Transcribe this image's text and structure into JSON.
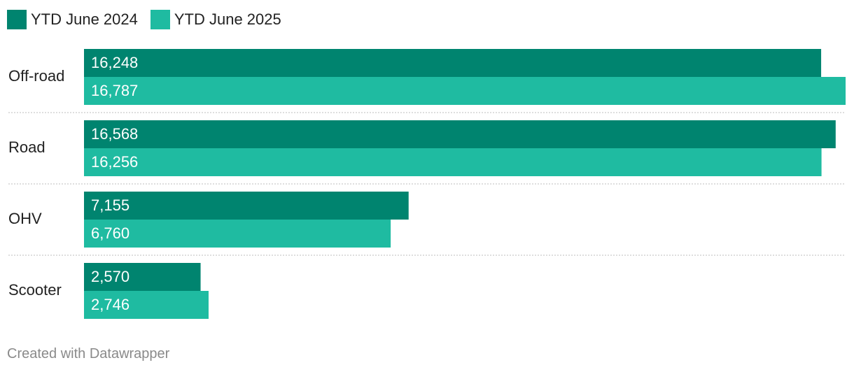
{
  "chart_data": {
    "type": "bar",
    "orientation": "horizontal",
    "categories": [
      "Off-road",
      "Road",
      "OHV",
      "Scooter"
    ],
    "series": [
      {
        "name": "YTD June 2024",
        "color": "#00846f",
        "values": [
          16248,
          16568,
          7155,
          2570
        ],
        "labels": [
          "16,248",
          "16,568",
          "7,155",
          "2,570"
        ]
      },
      {
        "name": "YTD June 2025",
        "color": "#1fbba1",
        "values": [
          16787,
          16256,
          6760,
          2746
        ],
        "labels": [
          "16,787",
          "16,256",
          "6,760",
          "2,746"
        ]
      }
    ],
    "xlim": [
      0,
      16787
    ],
    "grid": false,
    "legend": "top-left",
    "value_labels": "inside-left"
  },
  "footer": {
    "credit": "Created with Datawrapper"
  }
}
